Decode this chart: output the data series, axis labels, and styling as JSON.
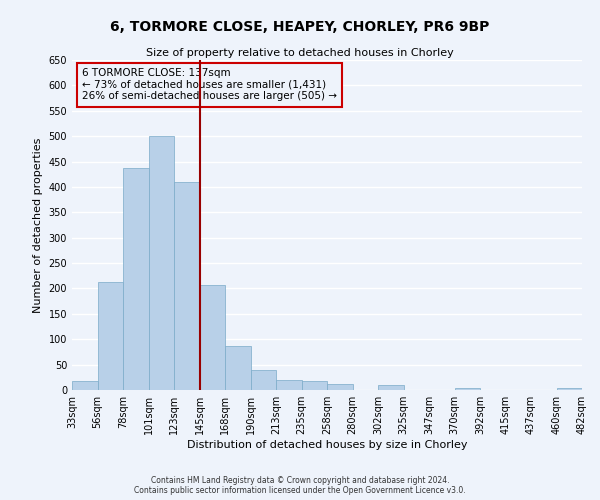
{
  "title": "6, TORMORE CLOSE, HEAPEY, CHORLEY, PR6 9BP",
  "subtitle": "Size of property relative to detached houses in Chorley",
  "xlabel": "Distribution of detached houses by size in Chorley",
  "ylabel": "Number of detached properties",
  "bin_labels": [
    "33sqm",
    "56sqm",
    "78sqm",
    "101sqm",
    "123sqm",
    "145sqm",
    "168sqm",
    "190sqm",
    "213sqm",
    "235sqm",
    "258sqm",
    "280sqm",
    "302sqm",
    "325sqm",
    "347sqm",
    "370sqm",
    "392sqm",
    "415sqm",
    "437sqm",
    "460sqm",
    "482sqm"
  ],
  "bar_values": [
    17,
    213,
    437,
    500,
    410,
    207,
    87,
    40,
    20,
    17,
    12,
    0,
    10,
    0,
    0,
    4,
    0,
    0,
    0,
    4
  ],
  "bar_color": "#b8d0e8",
  "bar_edge_color": "#7aaac8",
  "annotation_line1": "6 TORMORE CLOSE: 137sqm",
  "annotation_line2": "← 73% of detached houses are smaller (1,431)",
  "annotation_line3": "26% of semi-detached houses are larger (505) →",
  "vline_position": 5,
  "ylim": [
    0,
    650
  ],
  "yticks": [
    0,
    50,
    100,
    150,
    200,
    250,
    300,
    350,
    400,
    450,
    500,
    550,
    600,
    650
  ],
  "footnote1": "Contains HM Land Registry data © Crown copyright and database right 2024.",
  "footnote2": "Contains public sector information licensed under the Open Government Licence v3.0.",
  "bg_color": "#eef3fb",
  "grid_color": "#ffffff",
  "title_fontsize": 10,
  "subtitle_fontsize": 8,
  "ylabel_fontsize": 8,
  "xlabel_fontsize": 8,
  "tick_fontsize": 7,
  "annot_fontsize": 7.5,
  "footnote_fontsize": 5.5
}
